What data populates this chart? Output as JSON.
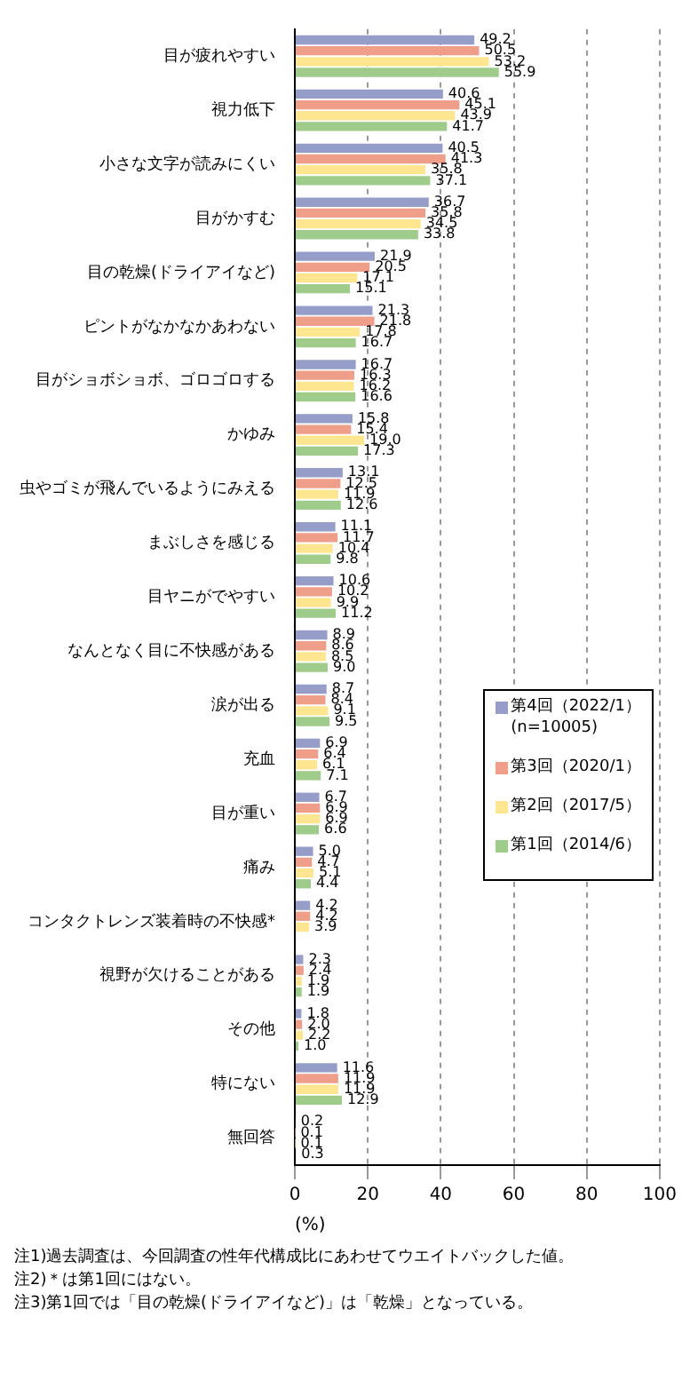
{
  "chart_data": {
    "type": "bar",
    "orientation": "horizontal",
    "categories": [
      "目が疲れやすい",
      "視力低下",
      "小さな文字が読みにくい",
      "目がかすむ",
      "目の乾燥(ドライアイなど)",
      "ピントがなかなかあわない",
      "目がショボショボ、ゴロゴロする",
      "かゆみ",
      "虫やゴミが飛んでいるようにみえる",
      "まぶしさを感じる",
      "目ヤニがでやすい",
      "なんとなく目に不快感がある",
      "涙が出る",
      "充血",
      "目が重い",
      "痛み",
      "コンタクトレンズ装着時の不快感*",
      "視野が欠けることがある",
      "その他",
      "特にない",
      "無回答"
    ],
    "series": [
      {
        "name": "第4回（2022/1）\n(n=10005)",
        "color": "#959dc8",
        "values": [
          49.2,
          40.6,
          40.5,
          36.7,
          21.9,
          21.3,
          16.7,
          15.8,
          13.1,
          11.1,
          10.6,
          8.9,
          8.7,
          6.9,
          6.7,
          5.0,
          4.2,
          2.3,
          1.8,
          11.6,
          0.2
        ],
        "value_labels": [
          "49.2",
          "40.6",
          "40.5",
          "36.7",
          "21.9",
          "21.3",
          "16.7",
          "15.8",
          "13.1",
          "11.1",
          "10.6",
          "8.9",
          "8.7",
          "6.9",
          "6.7",
          "5.0",
          "4.2",
          "2.3",
          "1.8",
          "11.6",
          "0.2"
        ]
      },
      {
        "name": "第3回（2020/1）",
        "color": "#ef9e8a",
        "values": [
          50.5,
          45.1,
          41.3,
          35.8,
          20.5,
          21.8,
          16.3,
          15.4,
          12.5,
          11.7,
          10.2,
          8.6,
          8.4,
          6.4,
          6.9,
          4.7,
          4.2,
          2.4,
          2.0,
          11.9,
          0.1
        ],
        "value_labels": [
          "50.5",
          "45.1",
          "41.3",
          "35.8",
          "20.5",
          "21.8",
          "16.3",
          "15.4",
          "12.5",
          "11.7",
          "10.2",
          "8.6",
          "8.4",
          "6.4",
          "6.9",
          "4.7",
          "4.2",
          "2.4",
          "2.0",
          "11.9",
          "0.1"
        ]
      },
      {
        "name": "第2回（2017/5）",
        "color": "#fde68f",
        "values": [
          53.2,
          43.9,
          35.8,
          34.5,
          17.1,
          17.8,
          16.2,
          19.0,
          11.9,
          10.4,
          9.9,
          8.5,
          9.1,
          6.1,
          6.9,
          5.1,
          3.9,
          1.9,
          2.2,
          11.9,
          0.1
        ],
        "value_labels": [
          "53.2",
          "43.9",
          "35.8",
          "34.5",
          "17.1",
          "17.8",
          "16.2",
          "19.0",
          "11.9",
          "10.4",
          "9.9",
          "8.5",
          "9.1",
          "6.1",
          "6.9",
          "5.1",
          "3.9",
          "1.9",
          "2.2",
          "11.9",
          "0.1"
        ]
      },
      {
        "name": "第1回（2014/6）",
        "color": "#9fcc8a",
        "values": [
          55.9,
          41.7,
          37.1,
          33.8,
          15.1,
          16.7,
          16.6,
          17.3,
          12.6,
          9.8,
          11.2,
          9.0,
          9.5,
          7.1,
          6.6,
          4.4,
          null,
          1.9,
          1.0,
          12.9,
          0.3
        ],
        "value_labels": [
          "55.9",
          "41.7",
          "37.1",
          "33.8",
          "15.1",
          "16.7",
          "16.6",
          "17.3",
          "12.6",
          "9.8",
          "11.2",
          "9.0",
          "9.5",
          "7.1",
          "6.6",
          "4.4",
          null,
          "1.9",
          "1.0",
          "12.9",
          "0.3"
        ]
      }
    ],
    "xlabel": "(%)",
    "xlim": [
      0,
      100
    ],
    "xticks": [
      0,
      20,
      40,
      60,
      80,
      100
    ],
    "grid": "x",
    "legend": "right",
    "annotations": [
      "注1)過去調査は、今回調査の性年代構成比にあわせてウエイトバックした値。",
      "注2)＊は第1回にはない。",
      "注3)第1回では「目の乾燥(ドライアイなど)」は「乾燥」となっている。"
    ]
  }
}
